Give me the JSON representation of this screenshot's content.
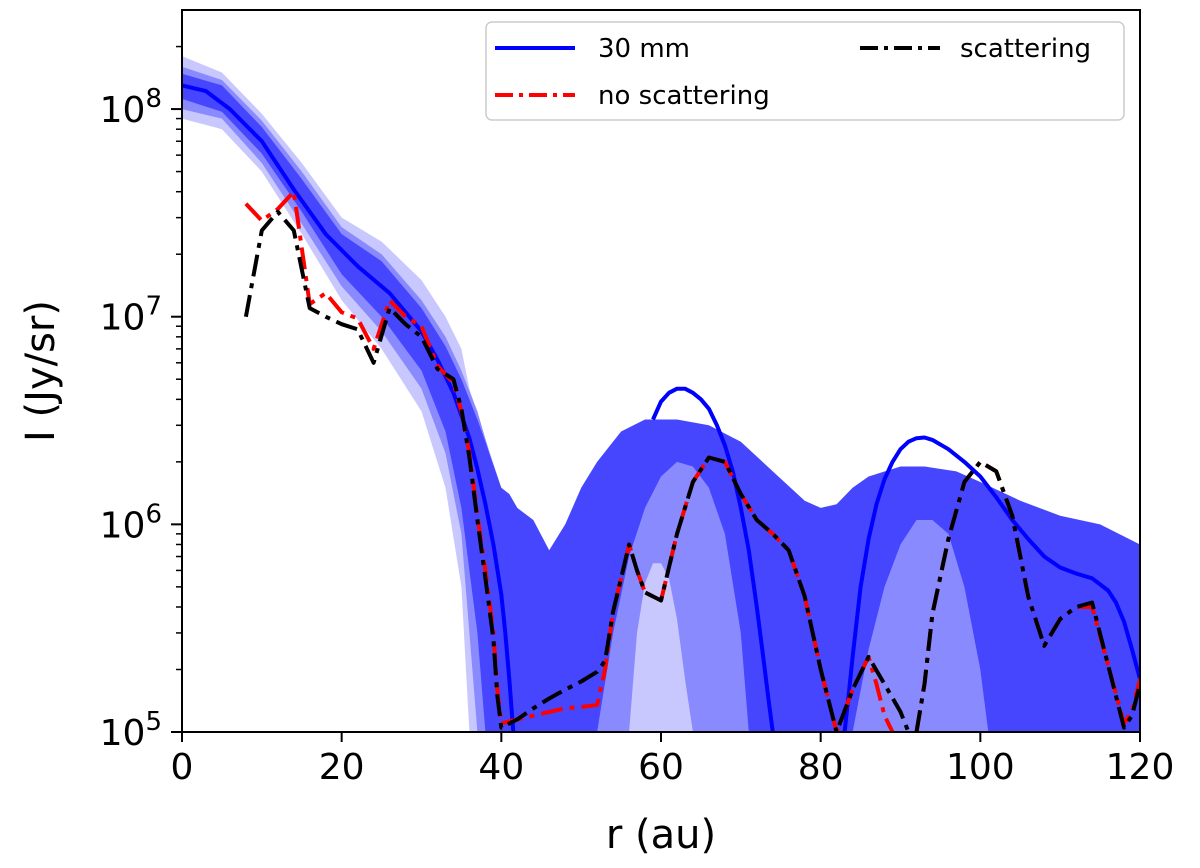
{
  "chart_data": {
    "type": "line",
    "title": "",
    "xlabel": "r (au)",
    "ylabel": "I (Jy/sr)",
    "xlim": [
      0,
      120
    ],
    "ylim": [
      100000,
      300000000
    ],
    "yscale": "log",
    "x_ticks": [
      0,
      20,
      40,
      60,
      80,
      100,
      120
    ],
    "x_tick_labels": [
      "0",
      "20",
      "40",
      "60",
      "80",
      "100",
      "120"
    ],
    "y_ticks": [
      {
        "value": 100000,
        "base": "10",
        "exp": "5"
      },
      {
        "value": 1000000,
        "base": "10",
        "exp": "6"
      },
      {
        "value": 10000000,
        "base": "10",
        "exp": "7"
      },
      {
        "value": 100000000,
        "base": "10",
        "exp": "8"
      }
    ],
    "legend": {
      "position": "top-right",
      "entries": [
        {
          "label": "30 mm",
          "color": "#0000ff",
          "style": "solid"
        },
        {
          "label": "no scattering",
          "color": "#ff0000",
          "style": "dashdot"
        },
        {
          "label": "scattering",
          "color": "#000000",
          "style": "dashdot"
        }
      ]
    },
    "bands": [
      {
        "name": "outer",
        "color": "#c8c8ff",
        "x": [
          0,
          5,
          10,
          15,
          20,
          25,
          30,
          33,
          35,
          36,
          40,
          44,
          46,
          50,
          55,
          62,
          68,
          72,
          78,
          82,
          86,
          93,
          100,
          105,
          110,
          115,
          120
        ],
        "upper": [
          180000000.0,
          150000000.0,
          95000000.0,
          55000000.0,
          30000000.0,
          23000000.0,
          15000000.0,
          10000000.0,
          7000000.0,
          4500000.0,
          1500000.0,
          600000.0,
          520000.0,
          700000.0,
          1200000.0,
          1500000.0,
          1200000.0,
          800000.0,
          450000.0,
          450000.0,
          650000.0,
          780000.0,
          650000.0,
          480000.0,
          350000.0,
          350000.0,
          220000.0
        ],
        "lower": [
          90000000.0,
          80000000.0,
          50000000.0,
          25000000.0,
          12000000.0,
          7000000.0,
          3500000.0,
          1500000.0,
          500000.0,
          100000.0,
          100000.0,
          100000.0,
          100000.0,
          100000.0,
          100000.0,
          100000.0,
          100000.0,
          100000.0,
          100000.0,
          100000.0,
          100000.0,
          100000.0,
          100000.0,
          100000.0,
          100000.0,
          100000.0,
          100000.0
        ]
      },
      {
        "name": "middle",
        "color": "#8a8aff",
        "x": [
          0,
          5,
          10,
          15,
          20,
          25,
          30,
          33,
          35,
          37,
          40,
          43,
          44,
          46,
          48,
          50,
          55,
          62,
          68,
          72,
          78,
          82,
          86,
          93,
          100,
          105,
          110,
          115,
          120
        ],
        "upper": [
          160000000.0,
          138000000.0,
          88000000.0,
          50000000.0,
          27000000.0,
          20000000.0,
          12000000.0,
          8000000.0,
          5500000.0,
          3500000.0,
          1400000.0,
          450000.0,
          180000.0,
          150000.0,
          200000.0,
          400000.0,
          800000.0,
          1150000.0,
          900000.0,
          600000.0,
          240000.0,
          230000.0,
          380000.0,
          500000.0,
          400000.0,
          320000.0,
          280000.0,
          260000.0,
          160000.0
        ],
        "lower": [
          100000000.0,
          90000000.0,
          55000000.0,
          28000000.0,
          14000000.0,
          8500000.0,
          4500000.0,
          2200000.0,
          900000.0,
          100000.0,
          100000.0,
          100000.0,
          100000.0,
          100000.0,
          100000.0,
          100000.0,
          100000.0,
          100000.0,
          100000.0,
          100000.0,
          100000.0,
          100000.0,
          100000.0,
          100000.0,
          100000.0,
          100000.0,
          100000.0,
          100000.0,
          100000.0
        ]
      },
      {
        "name": "inner",
        "color": "#4646ff",
        "x": [
          0,
          5,
          10,
          15,
          20,
          25,
          30,
          33,
          35,
          37,
          38,
          40,
          41,
          42,
          44,
          46,
          48,
          50,
          52,
          55,
          58,
          62,
          66,
          70,
          74,
          78,
          80,
          82,
          84,
          86,
          90,
          93,
          97,
          100,
          105,
          110,
          115,
          120
        ],
        "upper": [
          148000000.0,
          130000000.0,
          82000000.0,
          46000000.0,
          25000000.0,
          18500000.0,
          11000000.0,
          7200000.0,
          5000000.0,
          3200000.0,
          2500000.0,
          1500000.0,
          1400000.0,
          1200000.0,
          1050000.0,
          750000.0,
          1000000.0,
          1500000.0,
          2000000.0,
          2800000.0,
          3200000.0,
          3200000.0,
          3000000.0,
          2500000.0,
          1800000.0,
          1300000.0,
          1200000.0,
          1250000.0,
          1500000.0,
          1700000.0,
          1900000.0,
          1900000.0,
          1800000.0,
          1600000.0,
          1300000.0,
          1100000.0,
          1000000.0,
          800000.0
        ],
        "lower": [
          112000000.0,
          97000000.0,
          61000000.0,
          32000000.0,
          16000000.0,
          10000000.0,
          5500000.0,
          2800000.0,
          1200000.0,
          300000.0,
          100000.0,
          100000.0,
          100000.0,
          100000.0,
          100000.0,
          100000.0,
          100000.0,
          100000.0,
          100000.0,
          100000.0,
          100000.0,
          100000.0,
          100000.0,
          100000.0,
          100000.0,
          100000.0,
          100000.0,
          100000.0,
          100000.0,
          100000.0,
          100000.0,
          100000.0,
          100000.0,
          100000.0,
          100000.0,
          100000.0,
          100000.0,
          100000.0
        ]
      },
      {
        "name": "hole1",
        "color": "#8a8aff",
        "x": [
          52,
          54,
          56,
          58,
          60,
          62,
          64,
          66,
          68,
          70,
          71
        ],
        "upper": [
          100000.0,
          300000.0,
          700000.0,
          1200000.0,
          1700000.0,
          2000000.0,
          1900000.0,
          1500000.0,
          900000.0,
          300000.0,
          100000.0
        ],
        "lower": [
          100000.0,
          100000.0,
          100000.0,
          100000.0,
          100000.0,
          100000.0,
          100000.0,
          100000.0,
          100000.0,
          100000.0,
          100000.0
        ]
      },
      {
        "name": "hole1-light",
        "color": "#c8c8ff",
        "x": [
          56,
          57,
          58,
          59,
          60,
          61,
          62,
          63,
          64
        ],
        "upper": [
          100000.0,
          300000.0,
          520000.0,
          650000.0,
          650000.0,
          550000.0,
          350000.0,
          180000.0,
          100000.0
        ],
        "lower": [
          100000.0,
          100000.0,
          100000.0,
          100000.0,
          100000.0,
          100000.0,
          100000.0,
          100000.0,
          100000.0
        ]
      },
      {
        "name": "hole2",
        "color": "#8a8aff",
        "x": [
          84,
          86,
          88,
          90,
          92,
          94,
          96,
          98,
          100,
          101
        ],
        "upper": [
          100000.0,
          250000.0,
          500000.0,
          800000.0,
          1050000.0,
          1050000.0,
          900000.0,
          500000.0,
          200000.0,
          100000.0
        ],
        "lower": [
          100000.0,
          100000.0,
          100000.0,
          100000.0,
          100000.0,
          100000.0,
          100000.0,
          100000.0,
          100000.0,
          100000.0
        ]
      }
    ],
    "series": [
      {
        "name": "30 mm",
        "color": "#0000ff",
        "style": "solid",
        "segments": [
          {
            "x": [
              0,
              3,
              6,
              10,
              14,
              18,
              22,
              26,
              30,
              32,
              34,
              36,
              37,
              38,
              39,
              40,
              40.5,
              41,
              41.5
            ],
            "y": [
              130000000.0,
              122000000.0,
              100000000.0,
              70000000.0,
              41000000.0,
              25000000.0,
              17500000.0,
              13000000.0,
              8500000.0,
              6200000.0,
              4300000.0,
              2600000.0,
              1850000.0,
              1250000.0,
              800000.0,
              460000.0,
              300000.0,
              180000.0,
              100000.0
            ]
          },
          {
            "x": [
              59,
              60,
              61,
              62,
              63,
              64,
              65,
              66,
              67,
              68,
              69,
              70,
              71,
              72,
              72.8,
              73.5,
              74
            ],
            "y": [
              3200000.0,
              3900000.0,
              4300000.0,
              4500000.0,
              4500000.0,
              4300000.0,
              4000000.0,
              3600000.0,
              3000000.0,
              2400000.0,
              1800000.0,
              1200000.0,
              750000.0,
              400000.0,
              230000.0,
              140000.0,
              100000.0
            ]
          },
          {
            "x": [
              83,
              83.5,
              84,
              85,
              86,
              87,
              88,
              89,
              90,
              91,
              92,
              93,
              94,
              96,
              98,
              100,
              102,
              104,
              106,
              108,
              110,
              112,
              114,
              116,
              117,
              118,
              119,
              120
            ],
            "y": [
              100000.0,
              150000.0,
              230000.0,
              500000.0,
              850000.0,
              1250000.0,
              1650000.0,
              2000000.0,
              2300000.0,
              2500000.0,
              2600000.0,
              2620000.0,
              2550000.0,
              2300000.0,
              2000000.0,
              1700000.0,
              1350000.0,
              1050000.0,
              850000.0,
              700000.0,
              620000.0,
              580000.0,
              550000.0,
              480000.0,
              420000.0,
              340000.0,
              250000.0,
              180000.0
            ]
          }
        ]
      },
      {
        "name": "no scattering",
        "color": "#ff0000",
        "style": "dashdot",
        "segments": [
          {
            "x": [
              8,
              10,
              12,
              14,
              16,
              18,
              20,
              22,
              24,
              26,
              28,
              30,
              32,
              34,
              35,
              36,
              37,
              38,
              39,
              39.5,
              40,
              42,
              44,
              46,
              48,
              50,
              52,
              53,
              54,
              55,
              56,
              57,
              58,
              60,
              62,
              64,
              66,
              68,
              70,
              72,
              74,
              76,
              78,
              80,
              82,
              84,
              86,
              87,
              88,
              89
            ],
            "y": [
              35000000.0,
              29000000.0,
              33000000.0,
              40000000.0,
              11500000.0,
              13000000.0,
              10500000.0,
              9800000.0,
              7000000.0,
              12000000.0,
              10000000.0,
              9000000.0,
              5800000.0,
              4800000.0,
              3500000.0,
              2200000.0,
              1100000.0,
              600000.0,
              300000.0,
              160000.0,
              110000.0,
              115000.0,
              120000.0,
              125000.0,
              130000.0,
              132000.0,
              135000.0,
              200000.0,
              380000.0,
              550000.0,
              800000.0,
              600000.0,
              470000.0,
              430000.0,
              900000.0,
              1600000.0,
              2100000.0,
              2000000.0,
              1400000.0,
              1050000.0,
              900000.0,
              750000.0,
              450000.0,
              200000.0,
              100000.0,
              160000.0,
              230000.0,
              170000.0,
              120000.0,
              100000.0
            ]
          },
          {
            "x": [
              92,
              93,
              94,
              96,
              98,
              100,
              102,
              104,
              106,
              108,
              110,
              112,
              114,
              116,
              118,
              119,
              120
            ],
            "y": [
              100000.0,
              170000.0,
              370000.0,
              850000.0,
              1600000.0,
              2000000.0,
              1800000.0,
              1100000.0,
              450000.0,
              260000.0,
              350000.0,
              400000.0,
              400000.0,
              210000.0,
              110000.0,
              125000.0,
              180000.0
            ]
          }
        ]
      },
      {
        "name": "scattering",
        "color": "#000000",
        "style": "dashdot",
        "segments": [
          {
            "x": [
              8,
              10,
              12,
              14,
              16,
              18,
              20,
              22,
              24,
              26,
              28,
              30,
              32,
              34,
              35,
              36,
              37,
              38,
              39,
              39.5,
              40,
              42,
              44,
              46,
              48,
              50,
              52,
              53,
              54,
              55,
              56,
              57,
              58,
              60,
              62,
              64,
              66,
              68,
              70,
              72,
              74,
              76,
              78,
              80,
              82,
              84,
              86,
              88,
              90,
              91
            ],
            "y": [
              10000000.0,
              26000000.0,
              32000000.0,
              26000000.0,
              11000000.0,
              10000000.0,
              9200000.0,
              8700000.0,
              6000000.0,
              11000000.0,
              9200000.0,
              8000000.0,
              5600000.0,
              5000000.0,
              3600000.0,
              2100000.0,
              1050000.0,
              550000.0,
              280000.0,
              150000.0,
              105000.0,
              115000.0,
              130000.0,
              145000.0,
              160000.0,
              175000.0,
              195000.0,
              220000.0,
              380000.0,
              550000.0,
              800000.0,
              600000.0,
              470000.0,
              430000.0,
              900000.0,
              1600000.0,
              2100000.0,
              2000000.0,
              1400000.0,
              1050000.0,
              900000.0,
              750000.0,
              450000.0,
              200000.0,
              100000.0,
              160000.0,
              230000.0,
              170000.0,
              125000.0,
              100000.0
            ]
          },
          {
            "x": [
              92,
              93,
              94,
              96,
              98,
              100,
              102,
              104,
              106,
              108,
              110,
              112,
              114,
              116,
              118,
              119,
              120
            ],
            "y": [
              100000.0,
              170000.0,
              370000.0,
              850000.0,
              1600000.0,
              2000000.0,
              1800000.0,
              1100000.0,
              450000.0,
              260000.0,
              350000.0,
              400000.0,
              420000.0,
              210000.0,
              105000.0,
              120000.0,
              170000.0
            ]
          }
        ]
      }
    ]
  }
}
